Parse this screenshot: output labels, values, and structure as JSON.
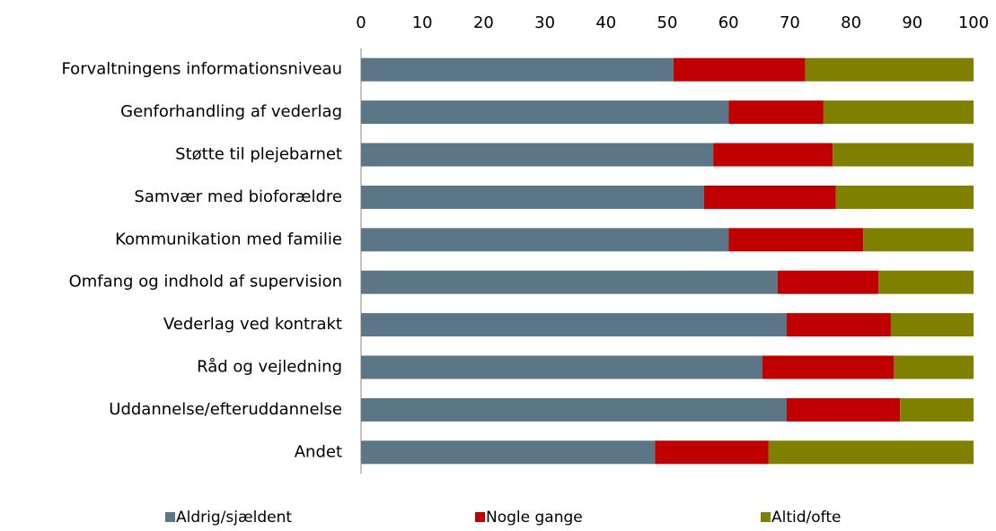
{
  "chart_data": {
    "type": "stacked-bar-horizontal",
    "categories": [
      "Forvaltningens informationsniveau",
      "Genforhandling af vederlag",
      "Støtte til plejebarnet",
      "Samvær med bioforældre",
      "Kommunikation med familie",
      "Omfang og indhold af supervision",
      "Vederlag ved kontrakt",
      "Råd og vejledning",
      "Uddannelse/efteruddannelse",
      "Andet"
    ],
    "series": [
      {
        "name": "Aldrig/sjældent",
        "color": "#5b7687",
        "values": [
          51,
          60,
          57.5,
          56,
          60,
          68,
          69.5,
          65.5,
          69.5,
          48
        ]
      },
      {
        "name": "Nogle gange",
        "color": "#c00000",
        "values": [
          21.5,
          15.5,
          19.5,
          21.5,
          22,
          16.5,
          17,
          21.5,
          18.5,
          18.5
        ]
      },
      {
        "name": "Altid/ofte",
        "color": "#808000",
        "values": [
          27.5,
          24.5,
          23,
          22.5,
          18,
          15.5,
          13.5,
          13,
          12,
          33.5
        ]
      }
    ],
    "xlim": [
      0,
      100
    ],
    "xticks": [
      0,
      10,
      20,
      30,
      40,
      50,
      60,
      70,
      80,
      90,
      100
    ]
  }
}
